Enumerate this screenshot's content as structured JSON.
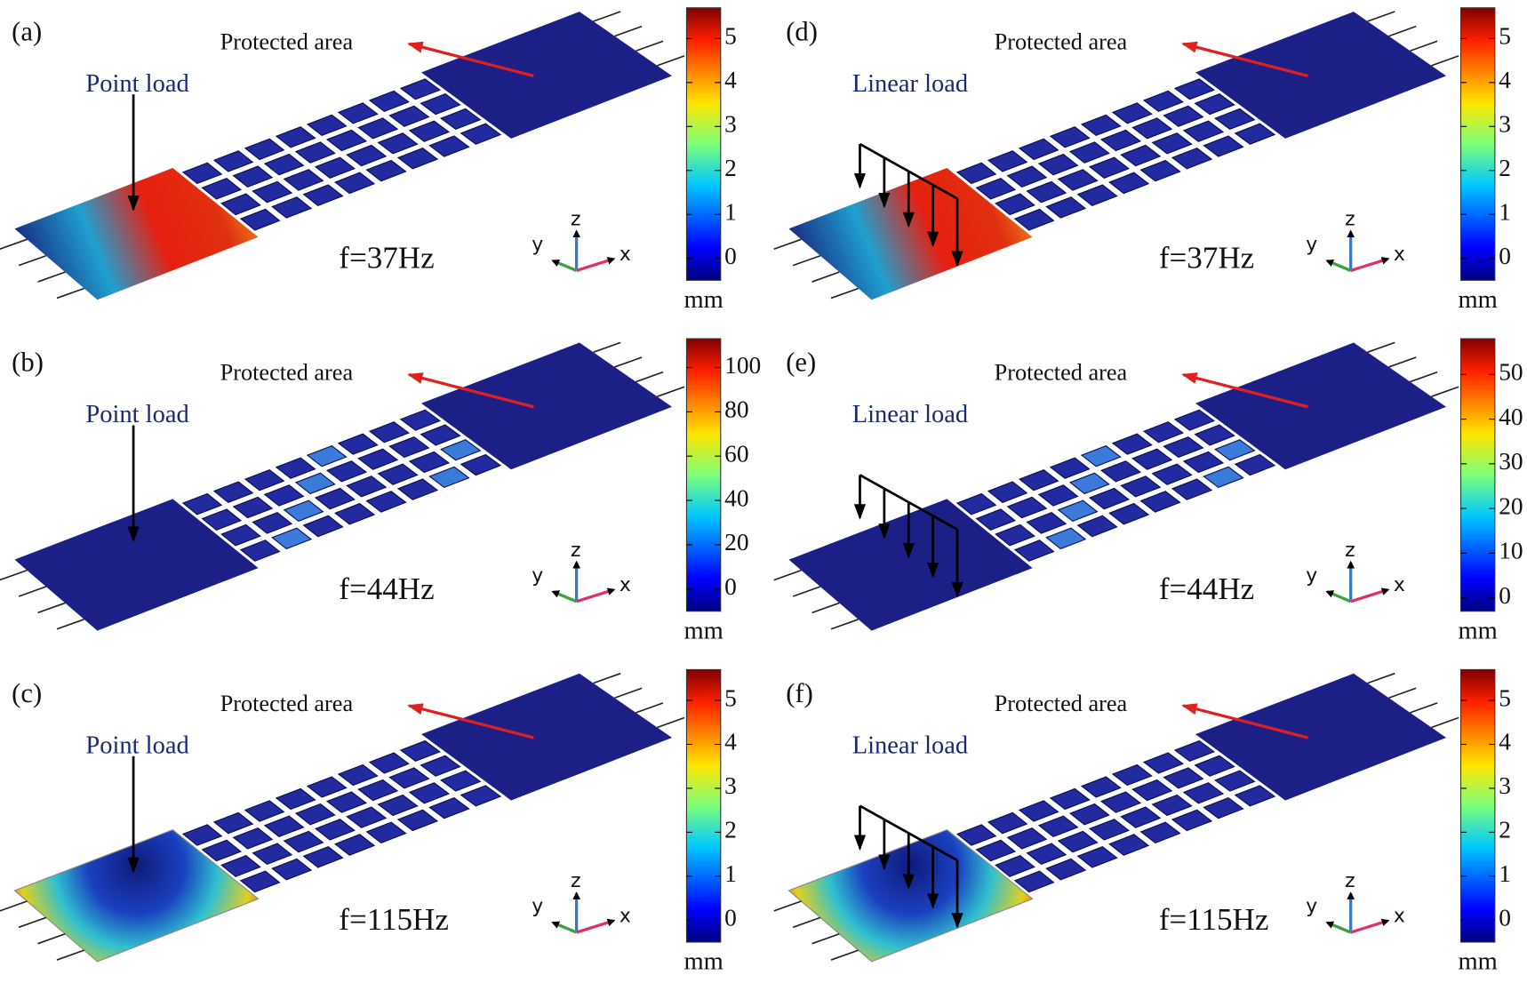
{
  "panels": [
    {
      "label": "(a)",
      "load": "Point load",
      "protected": "Protected area",
      "frequency": "f=37Hz",
      "axes": {
        "x": "x",
        "y": "y",
        "z": "z"
      },
      "colorbar": {
        "range": [
          -0.5,
          5.7
        ],
        "ticks": [
          0,
          1,
          2,
          3,
          4,
          5
        ],
        "unit": "mm"
      }
    },
    {
      "label": "(b)",
      "load": "Point load",
      "protected": "Protected area",
      "frequency": "f=44Hz",
      "axes": {
        "x": "x",
        "y": "y",
        "z": "z"
      },
      "colorbar": {
        "range": [
          -10,
          113
        ],
        "ticks": [
          0,
          20,
          40,
          60,
          80,
          100
        ],
        "unit": "mm"
      }
    },
    {
      "label": "(c)",
      "load": "Point load",
      "protected": "Protected area",
      "frequency": "f=115Hz",
      "axes": {
        "x": "x",
        "y": "y",
        "z": "z"
      },
      "colorbar": {
        "range": [
          -0.5,
          5.7
        ],
        "ticks": [
          0,
          1,
          2,
          3,
          4,
          5
        ],
        "unit": "mm"
      }
    },
    {
      "label": "(d)",
      "load": "Linear load",
      "protected": "Protected area",
      "frequency": "f=37Hz",
      "axes": {
        "x": "x",
        "y": "y",
        "z": "z"
      },
      "colorbar": {
        "range": [
          -0.5,
          5.7
        ],
        "ticks": [
          0,
          1,
          2,
          3,
          4,
          5
        ],
        "unit": "mm"
      }
    },
    {
      "label": "(e)",
      "load": "Linear load",
      "protected": "Protected area",
      "frequency": "f=44Hz",
      "axes": {
        "x": "x",
        "y": "y",
        "z": "z"
      },
      "colorbar": {
        "range": [
          -3,
          58
        ],
        "ticks": [
          0,
          10,
          20,
          30,
          40,
          50
        ],
        "unit": "mm"
      }
    },
    {
      "label": "(f)",
      "load": "Linear load",
      "protected": "Protected area",
      "frequency": "f=115Hz",
      "axes": {
        "x": "x",
        "y": "y",
        "z": "z"
      },
      "colorbar": {
        "range": [
          -0.5,
          5.7
        ],
        "ticks": [
          0,
          1,
          2,
          3,
          4,
          5
        ],
        "unit": "mm"
      }
    }
  ]
}
